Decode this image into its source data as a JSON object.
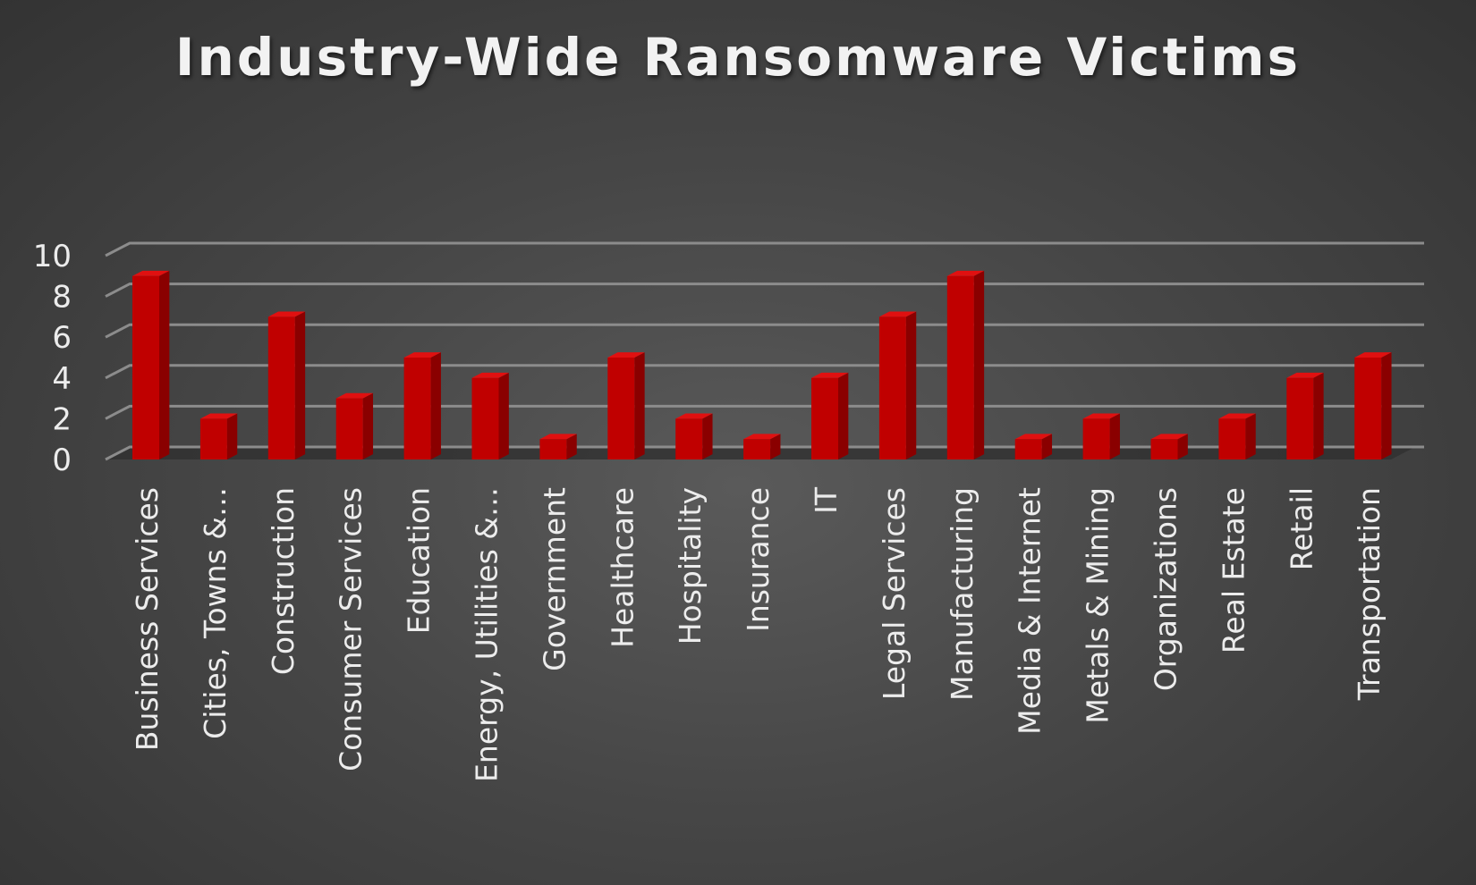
{
  "chart_data": {
    "type": "bar",
    "title": "Industry-Wide Ransomware Victims",
    "xlabel": "",
    "ylabel": "",
    "ylim": [
      0,
      10
    ],
    "yticks": [
      0,
      2,
      4,
      6,
      8,
      10
    ],
    "grid": true,
    "legend": "none",
    "categories": [
      "Business Services",
      "Cities, Towns &…",
      "Construction",
      "Consumer Services",
      "Education",
      "Energy, Utilities &…",
      "Government",
      "Healthcare",
      "Hospitality",
      "Insurance",
      "IT",
      "Legal Services",
      "Manufacturing",
      "Media & Internet",
      "Metals & Mining",
      "Organizations",
      "Real Estate",
      "Retail",
      "Transportation"
    ],
    "values": [
      9,
      2,
      7,
      3,
      5,
      4,
      1,
      5,
      2,
      1,
      4,
      7,
      9,
      1,
      2,
      1,
      2,
      4,
      5
    ],
    "colors": {
      "bar_front": "#c00000",
      "bar_side": "#8a0000",
      "bar_top": "#e01010",
      "gridline": "#8c8c8c",
      "text": "#ececec"
    }
  }
}
